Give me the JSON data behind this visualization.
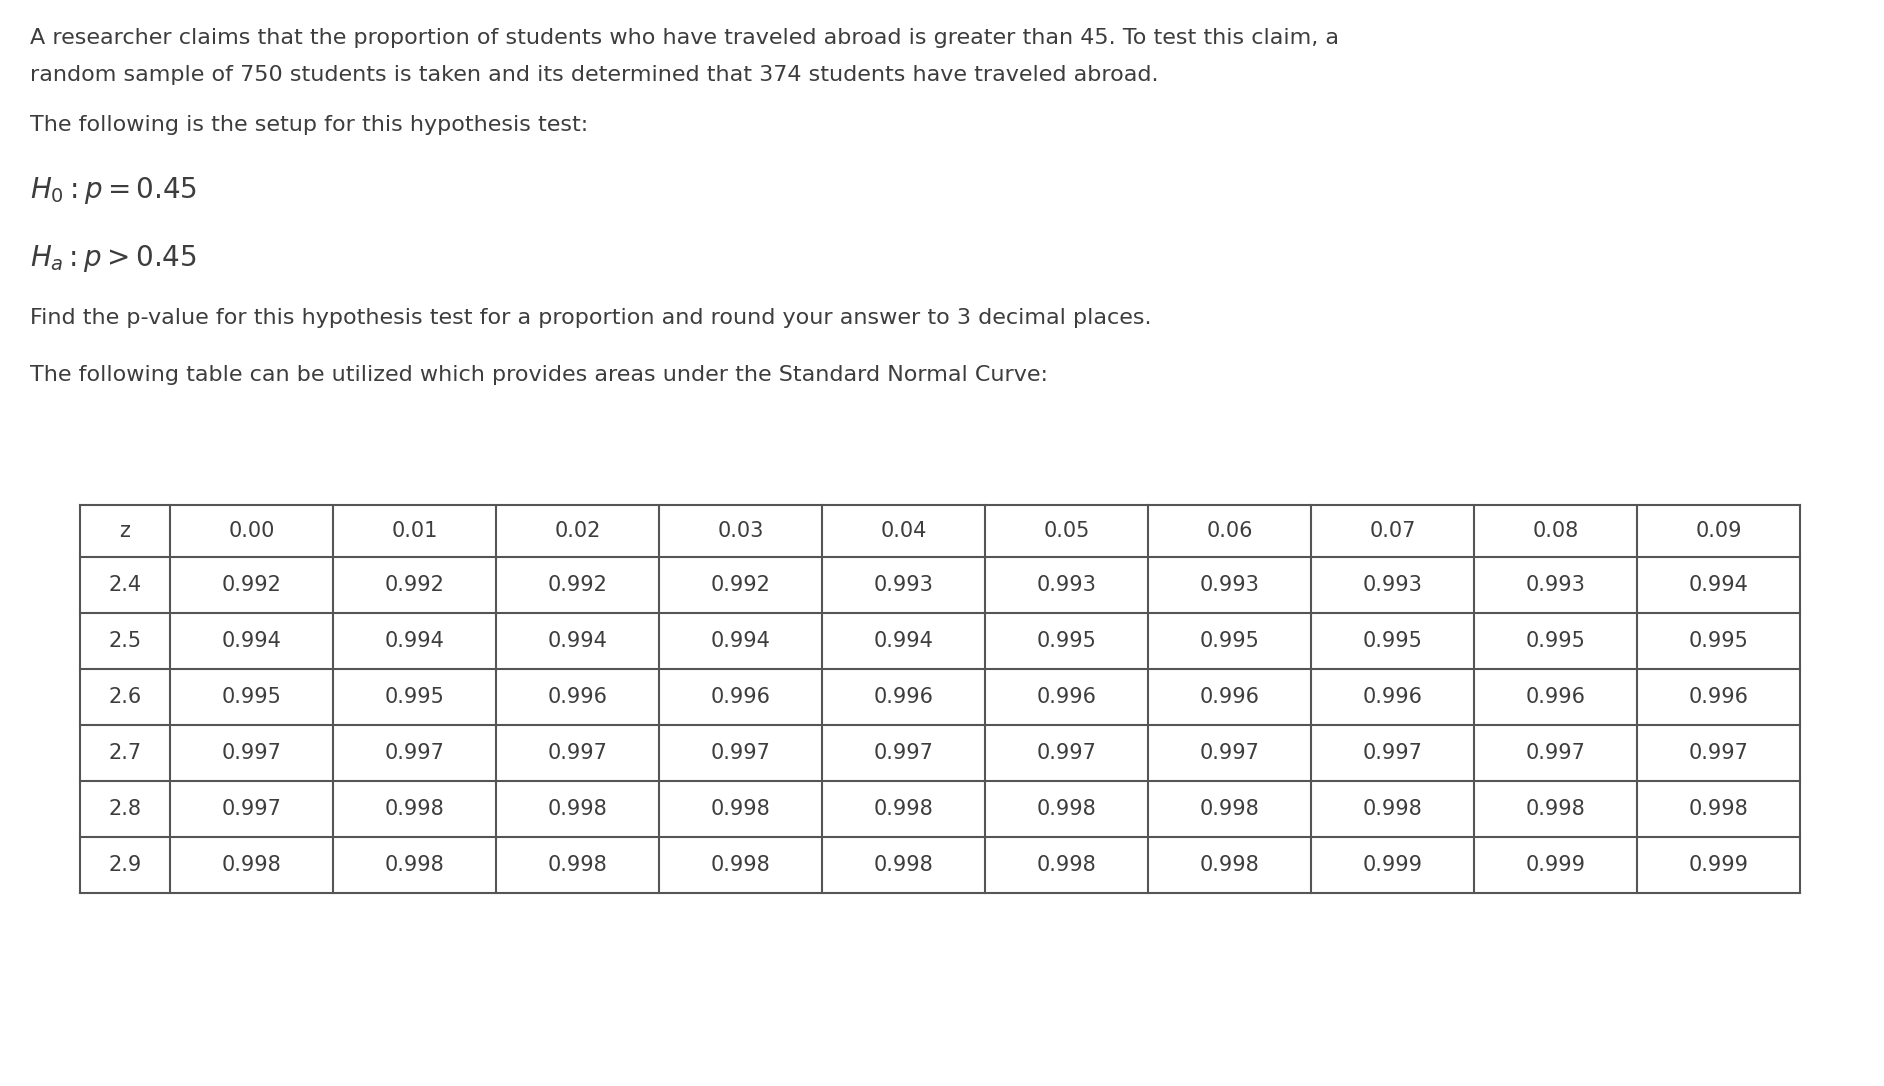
{
  "line1": "A researcher claims that the proportion of students who have traveled abroad is greater than 45. To test this claim, a",
  "line2": "random sample of 750 students is taken and its determined that 374 students have traveled abroad.",
  "line3": "The following is the setup for this hypothesis test:",
  "line4": "Find the p-value for this hypothesis test for a proportion and round your answer to 3 decimal places.",
  "line5": "The following table can be utilized which provides areas under the Standard Normal Curve:",
  "col_headers": [
    "z",
    "0.00",
    "0.01",
    "0.02",
    "0.03",
    "0.04",
    "0.05",
    "0.06",
    "0.07",
    "0.08",
    "0.09"
  ],
  "table_data": [
    [
      "2.4",
      "0.992",
      "0.992",
      "0.992",
      "0.992",
      "0.993",
      "0.993",
      "0.993",
      "0.993",
      "0.993",
      "0.994"
    ],
    [
      "2.5",
      "0.994",
      "0.994",
      "0.994",
      "0.994",
      "0.994",
      "0.995",
      "0.995",
      "0.995",
      "0.995",
      "0.995"
    ],
    [
      "2.6",
      "0.995",
      "0.995",
      "0.996",
      "0.996",
      "0.996",
      "0.996",
      "0.996",
      "0.996",
      "0.996",
      "0.996"
    ],
    [
      "2.7",
      "0.997",
      "0.997",
      "0.997",
      "0.997",
      "0.997",
      "0.997",
      "0.997",
      "0.997",
      "0.997",
      "0.997"
    ],
    [
      "2.8",
      "0.997",
      "0.998",
      "0.998",
      "0.998",
      "0.998",
      "0.998",
      "0.998",
      "0.998",
      "0.998",
      "0.998"
    ],
    [
      "2.9",
      "0.998",
      "0.998",
      "0.998",
      "0.998",
      "0.998",
      "0.998",
      "0.998",
      "0.999",
      "0.999",
      "0.999"
    ]
  ],
  "bg_color": "#ffffff",
  "text_color": "#3d3d3d",
  "table_border_color": "#555555",
  "font_size_body": 16,
  "font_size_math": 20,
  "font_size_table": 15
}
